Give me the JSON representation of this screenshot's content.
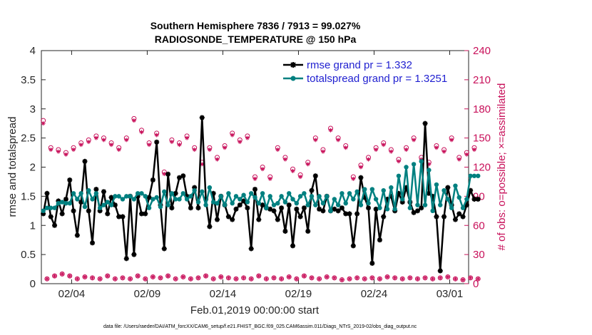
{
  "chart_data": {
    "type": "line",
    "title": "Southern Hemisphere 7836 / 7913 = 99.027%",
    "subtitle": "RADIOSONDE_TEMPERATURE @ 150 hPa",
    "xlabel": "Feb.01,2019 00:00:00 start",
    "ylabel": "rmse and totalspread",
    "ylabel_right": "# of obs: o=possible; ×=assimilated",
    "xlim": [
      1,
      29.25
    ],
    "ylim": [
      0,
      4
    ],
    "ylim_right": [
      0,
      240
    ],
    "x_ticks": [
      3,
      8,
      13,
      18,
      23,
      28
    ],
    "x_tick_labels": [
      "02/04",
      "02/09",
      "02/14",
      "02/19",
      "02/24",
      "03/01"
    ],
    "y_ticks": [
      0,
      0.5,
      1,
      1.5,
      2,
      2.5,
      3,
      3.5,
      4
    ],
    "y_tick_labels": [
      "0",
      "0.5",
      "1",
      "1.5",
      "2",
      "2.5",
      "3",
      "3.5",
      "4"
    ],
    "y_ticks_right": [
      0,
      30,
      60,
      90,
      120,
      150,
      180,
      210,
      240
    ],
    "y_tick_labels_right": [
      "0",
      "30",
      "60",
      "90",
      "120",
      "150",
      "180",
      "210",
      "240"
    ],
    "x_start": 1.125,
    "x_step": 0.25,
    "series": [
      {
        "name": "rmse grand pr = 1.332",
        "color": "#000000",
        "values": [
          1.2,
          1.55,
          1.15,
          1.0,
          1.42,
          1.2,
          1.45,
          1.78,
          1.25,
          0.83,
          1.4,
          2.1,
          1.25,
          0.7,
          1.62,
          1.25,
          1.58,
          1.2,
          1.48,
          1.35,
          1.15,
          1.15,
          0.43,
          1.5,
          0.5,
          1.5,
          1.2,
          1.2,
          1.48,
          1.78,
          2.43,
          1.35,
          0.6,
          1.88,
          1.3,
          1.55,
          1.82,
          1.85,
          1.5,
          1.3,
          1.65,
          1.3,
          2.85,
          1.45,
          0.98,
          1.55,
          1.1,
          1.5,
          1.35,
          1.15,
          1.1,
          1.28,
          1.35,
          1.42,
          1.3,
          0.6,
          1.62,
          1.1,
          1.35,
          1.3,
          1.28,
          1.25,
          1.1,
          1.3,
          0.9,
          1.35,
          0.65,
          1.28,
          1.15,
          1.3,
          0.9,
          1.6,
          1.85,
          1.28,
          1.25,
          1.5,
          1.25,
          1.28,
          1.25,
          1.3,
          1.2,
          1.2,
          0.65,
          1.2,
          1.82,
          1.48,
          1.3,
          0.35,
          1.28,
          0.75,
          1.15,
          1.45,
          1.5,
          1.25,
          1.55,
          1.4,
          1.65,
          1.4,
          1.22,
          1.25,
          1.3,
          2.75,
          1.55,
          1.5,
          1.15,
          0.22,
          1.15,
          1.65,
          1.35,
          1.1,
          1.2,
          1.15,
          1.35,
          1.6,
          1.45,
          1.45
        ]
      },
      {
        "name": "totalspread grand pr = 1.3251",
        "color": "#008080",
        "values": [
          1.25,
          1.3,
          1.3,
          1.3,
          1.38,
          1.4,
          1.38,
          1.38,
          1.55,
          1.45,
          1.55,
          1.32,
          1.6,
          1.45,
          1.55,
          1.3,
          1.35,
          1.4,
          1.35,
          1.5,
          1.5,
          1.45,
          1.5,
          1.5,
          1.45,
          1.55,
          1.55,
          1.5,
          1.3,
          1.45,
          1.48,
          1.32,
          1.58,
          1.35,
          1.55,
          1.45,
          1.45,
          1.55,
          1.45,
          1.5,
          1.6,
          1.4,
          1.58,
          1.35,
          1.65,
          1.4,
          1.38,
          1.5,
          1.35,
          1.55,
          1.38,
          1.5,
          1.45,
          1.52,
          1.4,
          1.55,
          1.48,
          1.38,
          1.55,
          1.3,
          1.5,
          1.35,
          1.38,
          1.5,
          1.4,
          1.55,
          1.45,
          1.38,
          1.5,
          1.55,
          1.35,
          1.5,
          1.35,
          1.5,
          1.38,
          1.5,
          1.25,
          1.45,
          1.35,
          1.55,
          1.38,
          1.55,
          1.45,
          1.58,
          1.35,
          1.62,
          1.38,
          1.62,
          1.45,
          1.3,
          1.6,
          1.28,
          1.65,
          1.28,
          1.85,
          1.45,
          2.0,
          1.3,
          2.05,
          1.35,
          2.1,
          1.35,
          1.95,
          1.25,
          1.7,
          1.35,
          1.6,
          1.45,
          1.3,
          1.68,
          1.48,
          1.3,
          1.45,
          1.85,
          1.85,
          1.85
        ]
      }
    ],
    "obs_possible": [
      168,
      5,
      140,
      8,
      138,
      10,
      135,
      8,
      140,
      5,
      145,
      7,
      148,
      6,
      152,
      5,
      150,
      8,
      145,
      5,
      140,
      6,
      150,
      5,
      170,
      8,
      158,
      5,
      145,
      7,
      155,
      6,
      115,
      8,
      148,
      5,
      145,
      7,
      152,
      5,
      140,
      6,
      125,
      8,
      140,
      5,
      130,
      7,
      142,
      6,
      155,
      5,
      148,
      6,
      152,
      5,
      110,
      8,
      120,
      5,
      110,
      6,
      140,
      5,
      130,
      7,
      118,
      5,
      112,
      8,
      125,
      6,
      150,
      5,
      138,
      7,
      160,
      6,
      150,
      4,
      142,
      5,
      110,
      6,
      122,
      5,
      130,
      6,
      140,
      5,
      145,
      7,
      138,
      6,
      128,
      5,
      140,
      6,
      150,
      5,
      130,
      6,
      125,
      5,
      142,
      6,
      138,
      7,
      150,
      5,
      130,
      4,
      135,
      6,
      140,
      5
    ],
    "obs_assimilated": [
      165,
      5,
      138,
      8,
      136,
      10,
      133,
      8,
      138,
      5,
      143,
      7,
      146,
      6,
      150,
      5,
      148,
      8,
      143,
      5,
      138,
      6,
      148,
      5,
      168,
      8,
      156,
      5,
      143,
      7,
      153,
      6,
      113,
      8,
      146,
      5,
      143,
      7,
      150,
      5,
      138,
      6,
      123,
      8,
      138,
      5,
      128,
      7,
      140,
      6,
      153,
      5,
      146,
      6,
      150,
      5,
      108,
      8,
      118,
      5,
      108,
      6,
      138,
      5,
      128,
      7,
      116,
      5,
      110,
      8,
      123,
      6,
      148,
      5,
      136,
      7,
      158,
      6,
      148,
      4,
      140,
      5,
      108,
      6,
      120,
      5,
      128,
      6,
      138,
      5,
      143,
      7,
      136,
      6,
      126,
      5,
      138,
      6,
      148,
      5,
      128,
      6,
      123,
      5,
      140,
      6,
      136,
      7,
      148,
      5,
      128,
      4,
      133,
      6,
      138,
      5
    ]
  }
}
